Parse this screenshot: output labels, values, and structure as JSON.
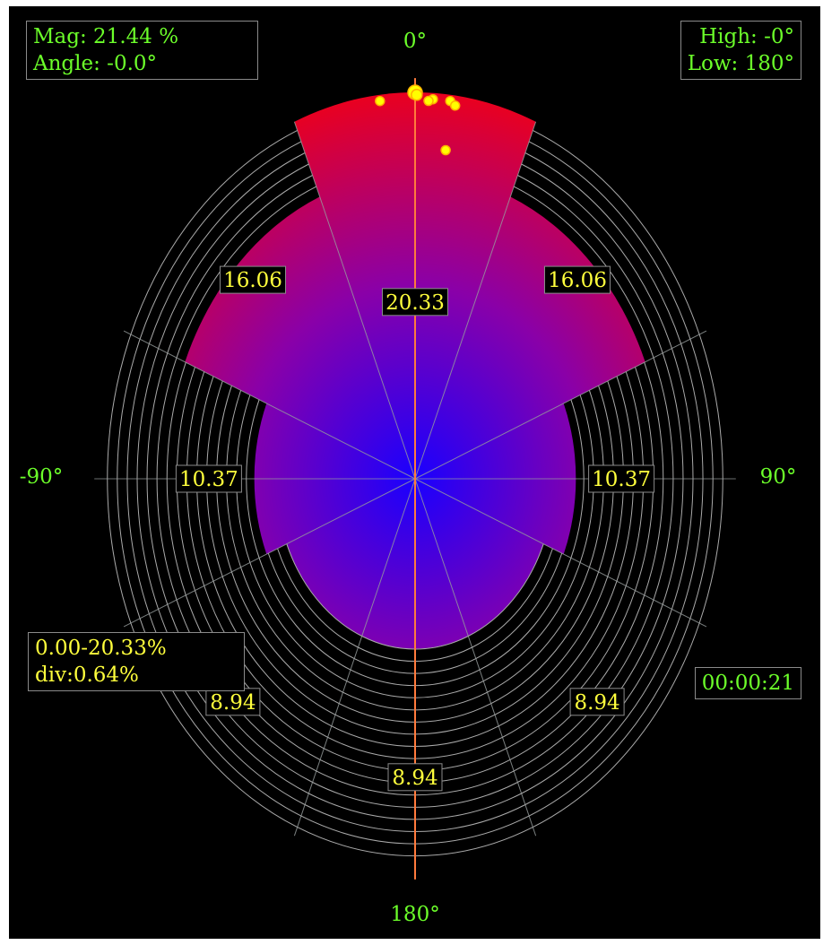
{
  "readout": {
    "magnitude": "Mag: 21.44 %",
    "angle": "Angle: -0.0°",
    "high": "High: -0°",
    "low": "Low: 180°",
    "range": "0.00-20.33%",
    "division": "div:0.64%",
    "elapsed": "00:00:21"
  },
  "chart_data": {
    "type": "polar-rose",
    "angle_labels": [
      {
        "angle": 0,
        "text": "0°"
      },
      {
        "angle": 90,
        "text": "90°"
      },
      {
        "angle": 180,
        "text": "180°"
      },
      {
        "angle": -90,
        "text": "-90°"
      }
    ],
    "radial_range": [
      0,
      20.33
    ],
    "division": 0.64,
    "sectors": [
      {
        "start": -22.5,
        "end": 22.5,
        "value": 20.33,
        "label": "20.33"
      },
      {
        "start": 22.5,
        "end": 67.5,
        "value": 16.06,
        "label": "16.06"
      },
      {
        "start": 67.5,
        "end": 112.5,
        "value": 10.37,
        "label": "10.37"
      },
      {
        "start": 112.5,
        "end": 157.5,
        "value": 8.94,
        "label": "8.94"
      },
      {
        "start": 157.5,
        "end": 202.5,
        "value": 8.94,
        "label": "8.94"
      },
      {
        "start": 202.5,
        "end": 247.5,
        "value": 8.94,
        "label": "8.94"
      },
      {
        "start": 247.5,
        "end": 292.5,
        "value": 10.37,
        "label": "10.37"
      },
      {
        "start": 292.5,
        "end": 337.5,
        "value": 16.06,
        "label": "16.06"
      }
    ],
    "current_direction": 0,
    "current_magnitude": 21.44,
    "high_direction": 0,
    "low_direction": 180,
    "samples": [
      {
        "angle": 0.0,
        "value": 20.33
      },
      {
        "angle": 0.3,
        "value": 20.2
      },
      {
        "angle": -6.5,
        "value": 20.0
      },
      {
        "angle": 3.3,
        "value": 20.0
      },
      {
        "angle": 2.5,
        "value": 19.9
      },
      {
        "angle": 6.5,
        "value": 20.0
      },
      {
        "angle": 7.5,
        "value": 19.8
      },
      {
        "angle": 6.5,
        "value": 17.4
      }
    ],
    "colors": {
      "sector_outer": "#ff0000",
      "sector_inner": "#1a00ff",
      "rings": "#c8c8c8",
      "direction_line": "#ff7a3c",
      "value_label_text": "#ffff3c",
      "angle_label_text": "#6cff2a",
      "sample_point": "#ffff00"
    }
  }
}
